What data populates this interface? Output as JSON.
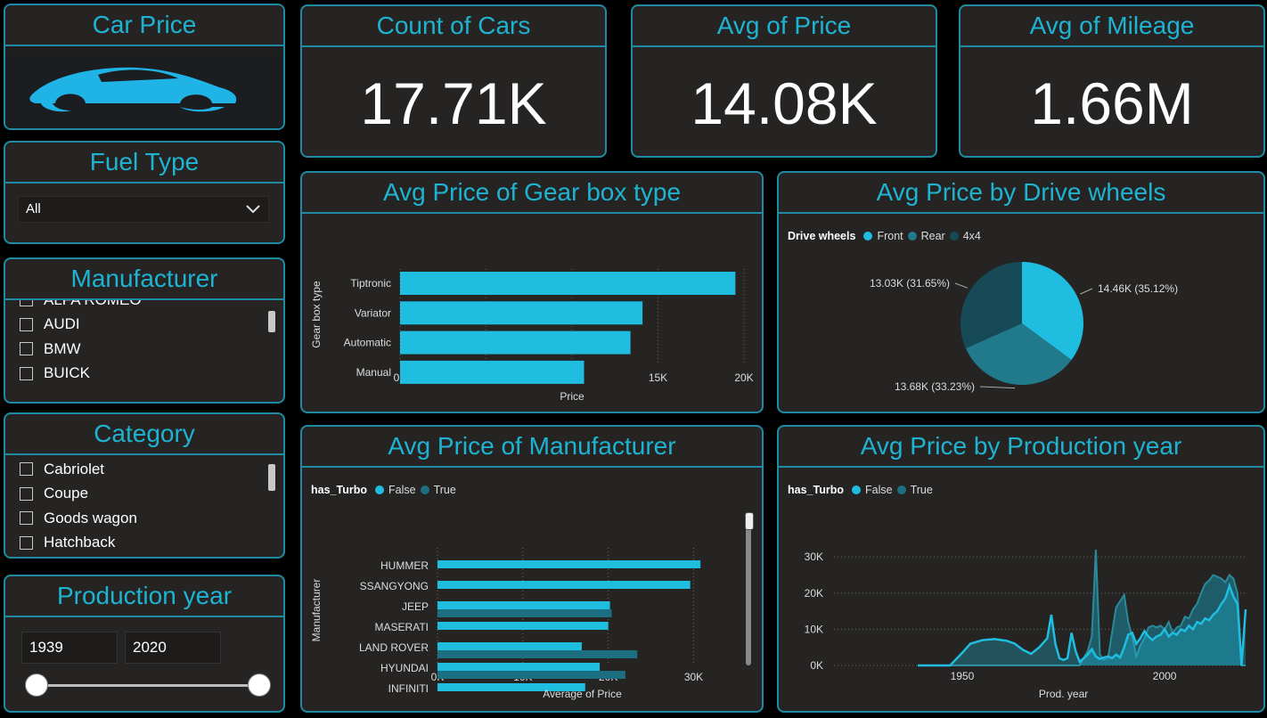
{
  "colors": {
    "accent": "#1fb3d2",
    "border": "#1f8aa3",
    "false_series": "#1fbde0",
    "true_series": "#1b6f80",
    "rear": "#217a8c",
    "four_x4": "#154a56"
  },
  "logo": {
    "title": "Car Price",
    "icon": "sports-car-icon"
  },
  "kpis": [
    {
      "title": "Count of Cars",
      "value": "17.71K"
    },
    {
      "title": "Avg of Price",
      "value": "14.08K"
    },
    {
      "title": "Avg of Mileage",
      "value": "1.66M"
    }
  ],
  "fuel_slicer": {
    "title": "Fuel Type",
    "selected": "All",
    "icon": "chevron-down-icon"
  },
  "manufacturer_slicer": {
    "title": "Manufacturer",
    "partial_top": "ALFA ROMEO",
    "items": [
      "AUDI",
      "BMW",
      "BUICK"
    ]
  },
  "category_slicer": {
    "title": "Category",
    "items": [
      "Cabriolet",
      "Coupe",
      "Goods wagon"
    ],
    "partial_bottom": "Hatchback"
  },
  "year_slicer": {
    "title": "Production year",
    "min": "1939",
    "max": "2020"
  },
  "chart_data": [
    {
      "id": "gearbox",
      "type": "bar",
      "title": "Avg Price of Gear box type",
      "xlabel": "Price",
      "ylabel": "Gear box type",
      "categories": [
        "Tiptronic",
        "Variator",
        "Automatic",
        "Manual"
      ],
      "values": [
        19500,
        14100,
        13400,
        10700
      ],
      "xlim": [
        0,
        20000
      ],
      "xticks": [
        0,
        5000,
        10000,
        15000,
        20000
      ],
      "xtick_labels": [
        "0K",
        "5K",
        "10K",
        "15K",
        "20K"
      ]
    },
    {
      "id": "drive",
      "type": "pie",
      "title": "Avg Price by Drive wheels",
      "legend_title": "Drive wheels",
      "labels": [
        "Front",
        "Rear",
        "4x4"
      ],
      "values": [
        14460,
        13680,
        13030
      ],
      "data_labels": [
        "14.46K (35.12%)",
        "13.68K (33.23%)",
        "13.03K (31.65%)"
      ]
    },
    {
      "id": "manufacturer",
      "type": "bar",
      "title": "Avg Price of Manufacturer",
      "legend_title": "has_Turbo",
      "xlabel": "Average of Price",
      "ylabel": "Manufacturer",
      "categories": [
        "HUMMER",
        "SSANGYONG",
        "JEEP",
        "MASERATI",
        "LAND ROVER",
        "HYUNDAI",
        "INFINITI"
      ],
      "series": [
        {
          "name": "False",
          "values": [
            30800,
            29600,
            20200,
            20000,
            16900,
            19000,
            17300
          ]
        },
        {
          "name": "True",
          "values": [
            0,
            0,
            20400,
            0,
            23400,
            22000,
            0
          ]
        }
      ],
      "xlim": [
        0,
        36000
      ],
      "xticks": [
        0,
        10000,
        20000,
        30000
      ],
      "xtick_labels": [
        "0K",
        "10K",
        "20K",
        "30K"
      ]
    },
    {
      "id": "year",
      "type": "area",
      "title": "Avg Price by Production year",
      "legend_title": "has_Turbo",
      "xlabel": "Prod. year",
      "xlim": [
        1939,
        2020
      ],
      "ylim": [
        0,
        32000
      ],
      "xticks": [
        1950,
        2000
      ],
      "yticks": [
        0,
        10000,
        20000,
        30000
      ],
      "ytick_labels": [
        "0K",
        "10K",
        "20K",
        "30K"
      ],
      "grid": true,
      "series": [
        {
          "name": "False",
          "x": [
            1939,
            1944,
            1947,
            1950,
            1952,
            1955,
            1958,
            1961,
            1963,
            1965,
            1967,
            1969,
            1971,
            1972,
            1973,
            1974,
            1975,
            1976,
            1977,
            1978,
            1979,
            1980,
            1981,
            1982,
            1983,
            1984,
            1985,
            1986,
            1987,
            1988,
            1989,
            1990,
            1991,
            1992,
            1993,
            1994,
            1995,
            1996,
            1997,
            1998,
            1999,
            2000,
            2001,
            2002,
            2003,
            2004,
            2005,
            2006,
            2007,
            2008,
            2009,
            2010,
            2011,
            2012,
            2013,
            2014,
            2015,
            2016,
            2017,
            2018,
            2019,
            2020
          ],
          "y": [
            0,
            0,
            0,
            3500,
            6000,
            7000,
            7300,
            6800,
            6000,
            4300,
            3200,
            5000,
            7500,
            14000,
            6000,
            2000,
            1500,
            2000,
            9000,
            4000,
            1000,
            2000,
            3000,
            4500,
            2500,
            1800,
            2200,
            2500,
            2000,
            3000,
            2200,
            5000,
            8500,
            9000,
            6000,
            7500,
            9500,
            8000,
            7000,
            8000,
            8500,
            10000,
            8000,
            9000,
            8500,
            10000,
            9500,
            11000,
            10000,
            12000,
            11500,
            13000,
            12500,
            14000,
            15000,
            17000,
            18500,
            22000,
            19000,
            17000,
            0,
            15500
          ]
        },
        {
          "name": "True",
          "x": [
            1939,
            1960,
            1970,
            1972,
            1974,
            1978,
            1979,
            1980,
            1981,
            1982,
            1983,
            1984,
            1985,
            1986,
            1988,
            1990,
            1991,
            1992,
            1993,
            1994,
            1995,
            1996,
            1997,
            1998,
            1999,
            2000,
            2001,
            2002,
            2003,
            2004,
            2005,
            2006,
            2007,
            2008,
            2009,
            2010,
            2011,
            2012,
            2013,
            2014,
            2015,
            2016,
            2017,
            2018,
            2019,
            2020
          ],
          "y": [
            0,
            0,
            0,
            0,
            0,
            0,
            0,
            2000,
            4000,
            8000,
            32000,
            3000,
            1500,
            2000,
            16000,
            19500,
            12000,
            8000,
            2500,
            5500,
            7500,
            10500,
            11000,
            10500,
            11000,
            10000,
            12000,
            9000,
            10500,
            11000,
            13500,
            13000,
            15500,
            17000,
            20000,
            22500,
            23500,
            25000,
            24500,
            24000,
            23000,
            25000,
            24000,
            20000,
            0,
            0
          ]
        }
      ]
    }
  ]
}
